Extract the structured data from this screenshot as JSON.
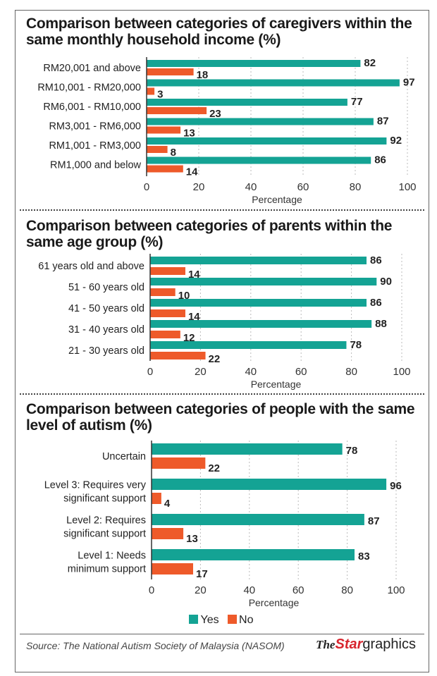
{
  "colors": {
    "yes": "#14a394",
    "no": "#ee5a2a"
  },
  "legend": {
    "yes": "Yes",
    "no": "No"
  },
  "source": "Source: The National Autism Society of Malaysia (NASOM)",
  "logo": {
    "the": "The",
    "star": "Star",
    "graphics": "graphics"
  },
  "chart_data": [
    {
      "type": "bar",
      "orientation": "horizontal",
      "title": "Comparison between categories of caregivers within the same monthly household income (%)",
      "xlabel": "Percentage",
      "xlim": [
        0,
        100
      ],
      "xticks": [
        0,
        20,
        40,
        60,
        80,
        100
      ],
      "grid": "vertical dotted",
      "categories": [
        [
          "RM20,001 and above"
        ],
        [
          "RM10,001 - RM20,000"
        ],
        [
          "RM6,001 - RM10,000"
        ],
        [
          "RM3,001 - RM6,000"
        ],
        [
          "RM1,001 - RM3,000"
        ],
        [
          "RM1,000 and below"
        ]
      ],
      "series": [
        {
          "name": "Yes",
          "values": [
            82,
            97,
            77,
            87,
            92,
            86
          ]
        },
        {
          "name": "No",
          "values": [
            18,
            3,
            23,
            13,
            8,
            14
          ]
        }
      ]
    },
    {
      "type": "bar",
      "orientation": "horizontal",
      "title": "Comparison between categories of parents within the same age group (%)",
      "xlabel": "Percentage",
      "xlim": [
        0,
        100
      ],
      "xticks": [
        0,
        20,
        40,
        60,
        80,
        100
      ],
      "grid": "vertical dotted",
      "categories": [
        [
          "61 years old and above"
        ],
        [
          "51 - 60 years old"
        ],
        [
          "41 - 50 years old"
        ],
        [
          "31 - 40 years old"
        ],
        [
          "21 - 30 years old"
        ]
      ],
      "series": [
        {
          "name": "Yes",
          "values": [
            86,
            90,
            86,
            88,
            78
          ]
        },
        {
          "name": "No",
          "values": [
            14,
            10,
            14,
            12,
            22
          ]
        }
      ]
    },
    {
      "type": "bar",
      "orientation": "horizontal",
      "title": "Comparison between categories of people with the same level of autism (%)",
      "xlabel": "Percentage",
      "xlim": [
        0,
        100
      ],
      "xticks": [
        0,
        20,
        40,
        60,
        80,
        100
      ],
      "grid": "vertical dotted",
      "categories": [
        [
          "Uncertain"
        ],
        [
          "Level 3: Requires very",
          "significant support"
        ],
        [
          "Level 2: Requires",
          "significant support"
        ],
        [
          "Level 1: Needs",
          "minimum support"
        ]
      ],
      "series": [
        {
          "name": "Yes",
          "values": [
            78,
            96,
            87,
            83
          ]
        },
        {
          "name": "No",
          "values": [
            22,
            4,
            13,
            17
          ]
        }
      ]
    }
  ]
}
